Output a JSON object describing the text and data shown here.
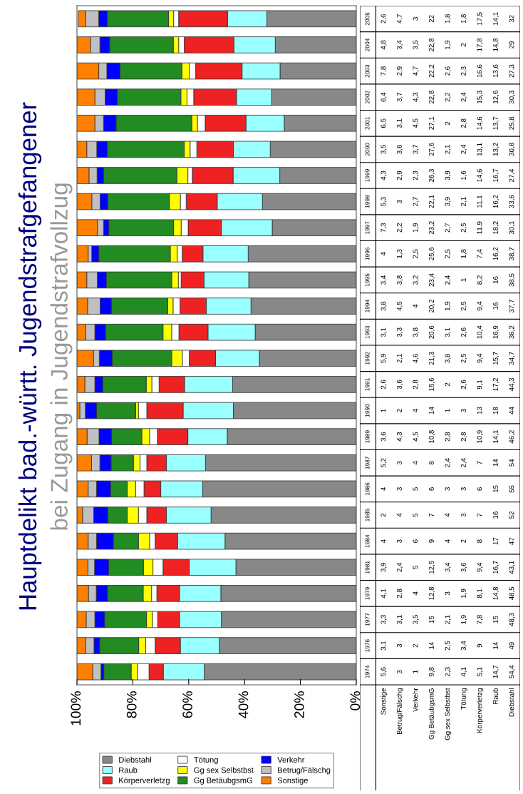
{
  "chart_data": {
    "type": "bar",
    "stacked": true,
    "orientation": "horizontal",
    "title": "Hauptdelikt bad.-württ. Jugendstrafgefangener",
    "subtitle": "bei Zugang in Jugendstrafvollzug",
    "categories": [
      "2005",
      "2004",
      "2003",
      "2002",
      "2001",
      "2000",
      "1999",
      "1998",
      "1997",
      "1996",
      "1995",
      "1994",
      "1993",
      "1992",
      "1991",
      "1990",
      "1989",
      "1987",
      "1986",
      "1985",
      "1984",
      "1981",
      "1979",
      "1977",
      "1976",
      "1974"
    ],
    "xlim": [
      100,
      0
    ],
    "xticks": [
      {
        "value": 100,
        "label": "100%"
      },
      {
        "value": 80,
        "label": "80%"
      },
      {
        "value": 60,
        "label": "60%"
      },
      {
        "value": 40,
        "label": "40%"
      },
      {
        "value": 20,
        "label": "20%"
      },
      {
        "value": 0,
        "label": "0%"
      }
    ],
    "grid": false,
    "legend": "bottom",
    "series": [
      {
        "name": "Diebstahl",
        "color": "#888888",
        "values": [
          32,
          29,
          27.3,
          30.3,
          25.8,
          30.8,
          27.4,
          33.6,
          30.1,
          38.7,
          38.5,
          37.7,
          36.2,
          34.7,
          44.3,
          44,
          46.2,
          54,
          55,
          52,
          47,
          43.1,
          48.5,
          48.3,
          49,
          54.4
        ],
        "value_labels": [
          "32",
          "29",
          "27,3",
          "30,3",
          "25,8",
          "30,8",
          "27,4",
          "33,6",
          "30,1",
          "38,7",
          "38,5",
          "37,7",
          "36,2",
          "34,7",
          "44,3",
          "44",
          "46,2",
          "54",
          "55",
          "52",
          "47",
          "43,1",
          "48,5",
          "48,3",
          "49",
          "54,4"
        ]
      },
      {
        "name": "Raub",
        "color": "#99ffff",
        "values": [
          14.1,
          14.8,
          13.6,
          12.6,
          13.7,
          13.2,
          16.7,
          16.2,
          18.2,
          16.2,
          16,
          16,
          16.9,
          15.7,
          17.2,
          18,
          14.1,
          14,
          15,
          16,
          17,
          16.7,
          14.8,
          15,
          14,
          14.7
        ],
        "value_labels": [
          "14,1",
          "14,8",
          "13,6",
          "12,6",
          "13,7",
          "13,2",
          "16,7",
          "16,2",
          "18,2",
          "16,2",
          "16",
          "16",
          "16,9",
          "15,7",
          "17,2",
          "18",
          "14,1",
          "14",
          "15",
          "16",
          "17",
          "16,7",
          "14,8",
          "15",
          "14",
          "14,7"
        ]
      },
      {
        "name": "Körperverletzg",
        "color": "#ee2222",
        "values": [
          17.5,
          17.8,
          16.6,
          15.3,
          14.6,
          13.1,
          14.6,
          11.1,
          11.9,
          7.4,
          8.2,
          9.4,
          10.4,
          9.4,
          9.1,
          13,
          10.9,
          7,
          6,
          7,
          8,
          9.4,
          8.1,
          7.8,
          9,
          5.1
        ],
        "value_labels": [
          "17,5",
          "17,8",
          "16,6",
          "15,3",
          "14,6",
          "13,1",
          "14,6",
          "11,1",
          "11,9",
          "7,4",
          "8,2",
          "9,4",
          "10,4",
          "9,4",
          "9,1",
          "13",
          "10,9",
          "7",
          "6",
          "7",
          "8",
          "9,4",
          "8,1",
          "7,8",
          "9",
          "5,1"
        ]
      },
      {
        "name": "Tötung",
        "color": "#ffffff",
        "values": [
          1.8,
          2,
          2.3,
          2.4,
          2.8,
          2.4,
          1.6,
          2.1,
          2.5,
          1.8,
          1,
          2.5,
          2.6,
          2.5,
          2.6,
          3,
          2.8,
          2.4,
          3,
          3,
          2,
          3.6,
          1.9,
          1.9,
          3.4,
          4.1
        ],
        "value_labels": [
          "1,8",
          "2",
          "2,3",
          "2,4",
          "2,8",
          "2,4",
          "1,6",
          "2,1",
          "2,5",
          "1,8",
          "1",
          "2,5",
          "2,6",
          "2,5",
          "2,6",
          "3",
          "2,8",
          "2,4",
          "3",
          "3",
          "2",
          "3,6",
          "1,9",
          "1,9",
          "3,4",
          "4,1"
        ]
      },
      {
        "name": "Gg sex Selbstbst",
        "color": "#ffff00",
        "values": [
          1.8,
          1.9,
          2.6,
          2.2,
          2,
          2.1,
          3.9,
          3.9,
          2.7,
          2.5,
          2.4,
          1.9,
          3.1,
          3.8,
          2,
          1,
          2.8,
          2.4,
          3,
          4,
          4,
          3.4,
          3,
          2.1,
          2.5,
          2.3
        ],
        "value_labels": [
          "1,8",
          "1,9",
          "2,6",
          "2,2",
          "2",
          "2,1",
          "3,9",
          "3,9",
          "2,7",
          "2,5",
          "2,4",
          "1,9",
          "3,1",
          "3,8",
          "2",
          "1",
          "2,8",
          "2,4",
          "3",
          "4",
          "4",
          "3,4",
          "3",
          "2,1",
          "2,5",
          "2,3"
        ]
      },
      {
        "name": "Gg BetäubgsmG",
        "color": "#228b22",
        "values": [
          22,
          22.8,
          22.2,
          22.8,
          27.1,
          27.6,
          26.3,
          22.1,
          23.2,
          25.6,
          23.4,
          20.2,
          20.6,
          21.3,
          15.6,
          14,
          10.8,
          8,
          6,
          7,
          9,
          12.5,
          12.8,
          15,
          14,
          9.8
        ],
        "value_labels": [
          "22",
          "22,8",
          "22,2",
          "22,8",
          "27,1",
          "27,6",
          "26,3",
          "22,1",
          "23,2",
          "25,6",
          "23,4",
          "20,2",
          "20,6",
          "21,3",
          "15,6",
          "14",
          "10,8",
          "8",
          "6",
          "7",
          "9",
          "12,5",
          "12,8",
          "15",
          "14",
          "9,8"
        ]
      },
      {
        "name": "Verkehr",
        "color": "#0000ff",
        "values": [
          3,
          3.5,
          4.7,
          4.3,
          4.5,
          3.7,
          2.3,
          2.7,
          1.9,
          2.5,
          3.2,
          4,
          3.8,
          4.6,
          2.8,
          4,
          4.5,
          4,
          5,
          5,
          6,
          5,
          4,
          3.5,
          2,
          1
        ],
        "value_labels": [
          "3",
          "3,5",
          "4,7",
          "4,3",
          "4,5",
          "3,7",
          "2,3",
          "2,7",
          "1,9",
          "2,5",
          "3,2",
          "4",
          "3,8",
          "4,6",
          "2,8",
          "4",
          "4,5",
          "4",
          "5",
          "5",
          "6",
          "5",
          "4",
          "3,5",
          "2",
          "1"
        ]
      },
      {
        "name": "Betrug/Fälschg",
        "color": "#c0c0c0",
        "values": [
          4.7,
          3.4,
          2.9,
          3.7,
          3.1,
          3.6,
          2.9,
          3,
          2.2,
          1.3,
          3.8,
          4.5,
          3.3,
          2.1,
          3.6,
          2,
          4.3,
          3,
          3,
          4,
          3,
          2.4,
          2.8,
          3.1,
          3,
          3
        ],
        "value_labels": [
          "4,7",
          "3,4",
          "2,9",
          "3,7",
          "3,1",
          "3,6",
          "2,9",
          "3",
          "2,2",
          "1,3",
          "3,8",
          "4,5",
          "3,3",
          "2,1",
          "3,6",
          "2",
          "4,3",
          "3",
          "3",
          "4",
          "3",
          "2,4",
          "2,8",
          "3,1",
          "3",
          "3"
        ]
      },
      {
        "name": "Sonstige",
        "color": "#ff8000",
        "values": [
          2.6,
          4.8,
          7.8,
          6.4,
          6.5,
          3.5,
          4.3,
          5.3,
          7.3,
          4,
          3.4,
          3.8,
          3.1,
          5.9,
          2.6,
          1,
          3.6,
          5.2,
          4,
          2,
          4,
          3.9,
          4.1,
          3.3,
          3.1,
          5.6
        ],
        "value_labels": [
          "2,6",
          "4,8",
          "7,8",
          "6,4",
          "6,5",
          "3,5",
          "4,3",
          "5,3",
          "7,3",
          "4",
          "3,4",
          "3,8",
          "3,1",
          "5,9",
          "2,6",
          "1",
          "3,6",
          "5,2",
          "4",
          "2",
          "4",
          "3,9",
          "4,1",
          "3,3",
          "3,1",
          "5,6"
        ]
      }
    ]
  }
}
